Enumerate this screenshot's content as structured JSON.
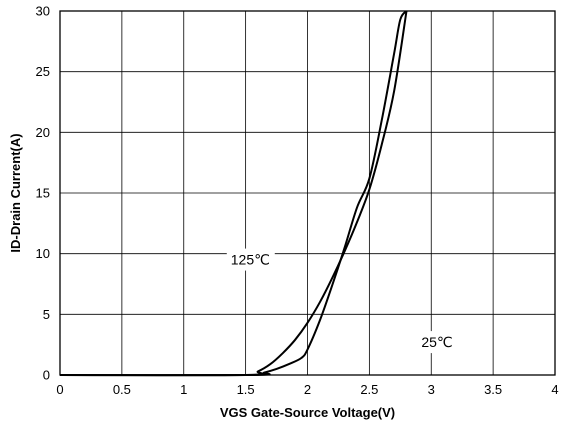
{
  "chart_data": {
    "type": "line",
    "title": "",
    "xlabel": "VGS Gate-Source Voltage(V)",
    "ylabel": "ID-Drain Current(A)",
    "xlim": [
      0,
      4
    ],
    "ylim": [
      0,
      30
    ],
    "xticks": [
      "0",
      "0.5",
      "1",
      "1.5",
      "2",
      "2.5",
      "3",
      "3.5",
      "4"
    ],
    "yticks": [
      "0",
      "5",
      "10",
      "15",
      "20",
      "25",
      "30"
    ],
    "grid": true,
    "legend": "none",
    "series": [
      {
        "name": "125℃",
        "x": [
          0,
          1.5,
          1.6,
          1.7,
          1.8,
          1.9,
          2.0,
          2.1,
          2.2,
          2.3,
          2.4,
          2.5,
          2.6,
          2.7,
          2.8
        ],
        "y": [
          0,
          0,
          0.3,
          0.9,
          1.8,
          2.9,
          4.3,
          6.0,
          8.0,
          10.2,
          12.6,
          15.3,
          19.0,
          23.4,
          30.0
        ]
      },
      {
        "name": "25℃",
        "x": [
          0,
          1.55,
          1.65,
          1.75,
          1.85,
          1.95,
          2.0,
          2.1,
          2.2,
          2.3,
          2.4,
          2.5,
          2.6,
          2.7,
          2.75,
          2.8
        ],
        "y": [
          0,
          0,
          0.2,
          0.5,
          0.9,
          1.4,
          2.1,
          4.5,
          7.4,
          10.5,
          13.8,
          16.2,
          21.0,
          26.5,
          29.3,
          30.0
        ]
      }
    ],
    "annotations": [
      {
        "text": "125℃",
        "x": 1.38,
        "y": 9.1
      },
      {
        "text": "25℃",
        "x": 2.92,
        "y": 2.3
      }
    ]
  }
}
